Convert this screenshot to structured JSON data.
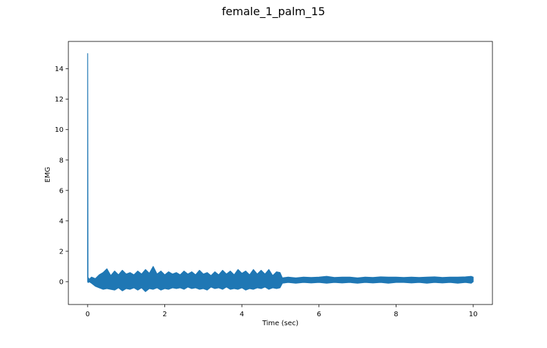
{
  "chart_data": {
    "type": "line",
    "title": "female_1_palm_15",
    "xlabel": "Time (sec)",
    "ylabel": "EMG",
    "xlim": [
      -0.5,
      10.5
    ],
    "ylim": [
      -1.5,
      15.8
    ],
    "xticks": [
      0,
      2,
      4,
      6,
      8,
      10
    ],
    "yticks": [
      0,
      2,
      4,
      6,
      8,
      10,
      12,
      14
    ],
    "grid": false,
    "series": [
      {
        "color": "#1f77b4",
        "x": [
          0.0,
          0.0,
          0.01,
          0.02,
          0.04,
          0.1,
          0.2,
          0.3,
          0.4,
          0.5,
          0.6,
          0.7,
          0.8,
          0.9,
          1.0,
          1.1,
          1.2,
          1.3,
          1.4,
          1.5,
          1.6,
          1.7,
          1.8,
          1.9,
          2.0,
          2.1,
          2.2,
          2.3,
          2.4,
          2.5,
          2.6,
          2.7,
          2.8,
          2.9,
          3.0,
          3.1,
          3.2,
          3.3,
          3.4,
          3.5,
          3.6,
          3.7,
          3.8,
          3.9,
          4.0,
          4.1,
          4.2,
          4.3,
          4.4,
          4.5,
          4.6,
          4.7,
          4.8,
          4.9,
          4.99,
          5.05,
          5.2,
          5.4,
          5.6,
          5.8,
          6.0,
          6.2,
          6.4,
          6.6,
          6.8,
          7.0,
          7.2,
          7.4,
          7.6,
          7.8,
          8.0,
          8.2,
          8.4,
          8.6,
          8.8,
          9.0,
          9.2,
          9.4,
          9.6,
          9.8,
          9.95,
          10.0
        ],
        "y": [
          0.0,
          15.0,
          0.2,
          0.25,
          0.15,
          0.3,
          0.2,
          0.45,
          0.6,
          0.85,
          0.4,
          0.7,
          0.45,
          0.75,
          0.5,
          0.6,
          0.45,
          0.7,
          0.5,
          0.8,
          0.55,
          1.0,
          0.5,
          0.7,
          0.45,
          0.65,
          0.5,
          0.6,
          0.45,
          0.7,
          0.5,
          0.65,
          0.45,
          0.75,
          0.5,
          0.6,
          0.4,
          0.65,
          0.45,
          0.75,
          0.5,
          0.7,
          0.45,
          0.8,
          0.55,
          0.7,
          0.45,
          0.8,
          0.5,
          0.75,
          0.5,
          0.8,
          0.4,
          0.65,
          0.6,
          0.25,
          0.3,
          0.25,
          0.3,
          0.28,
          0.3,
          0.35,
          0.28,
          0.3,
          0.3,
          0.25,
          0.3,
          0.28,
          0.32,
          0.3,
          0.3,
          0.28,
          0.3,
          0.28,
          0.3,
          0.32,
          0.28,
          0.3,
          0.3,
          0.32,
          0.35,
          0.3
        ],
        "ymin": [
          0.0,
          0.0,
          -0.05,
          -0.05,
          0.0,
          -0.1,
          -0.3,
          -0.4,
          -0.5,
          -0.45,
          -0.5,
          -0.55,
          -0.4,
          -0.6,
          -0.45,
          -0.5,
          -0.4,
          -0.55,
          -0.4,
          -0.65,
          -0.45,
          -0.5,
          -0.4,
          -0.55,
          -0.45,
          -0.5,
          -0.4,
          -0.45,
          -0.4,
          -0.5,
          -0.35,
          -0.45,
          -0.4,
          -0.5,
          -0.45,
          -0.55,
          -0.35,
          -0.45,
          -0.4,
          -0.5,
          -0.35,
          -0.5,
          -0.45,
          -0.5,
          -0.4,
          -0.55,
          -0.45,
          -0.5,
          -0.4,
          -0.45,
          -0.35,
          -0.5,
          -0.4,
          -0.45,
          -0.4,
          -0.1,
          -0.05,
          -0.1,
          -0.05,
          -0.08,
          -0.05,
          -0.1,
          -0.05,
          -0.08,
          -0.05,
          -0.1,
          -0.05,
          -0.08,
          -0.05,
          -0.1,
          -0.05,
          -0.05,
          -0.08,
          -0.05,
          -0.1,
          -0.05,
          -0.08,
          -0.05,
          -0.1,
          -0.05,
          -0.1,
          0.0
        ]
      }
    ]
  }
}
